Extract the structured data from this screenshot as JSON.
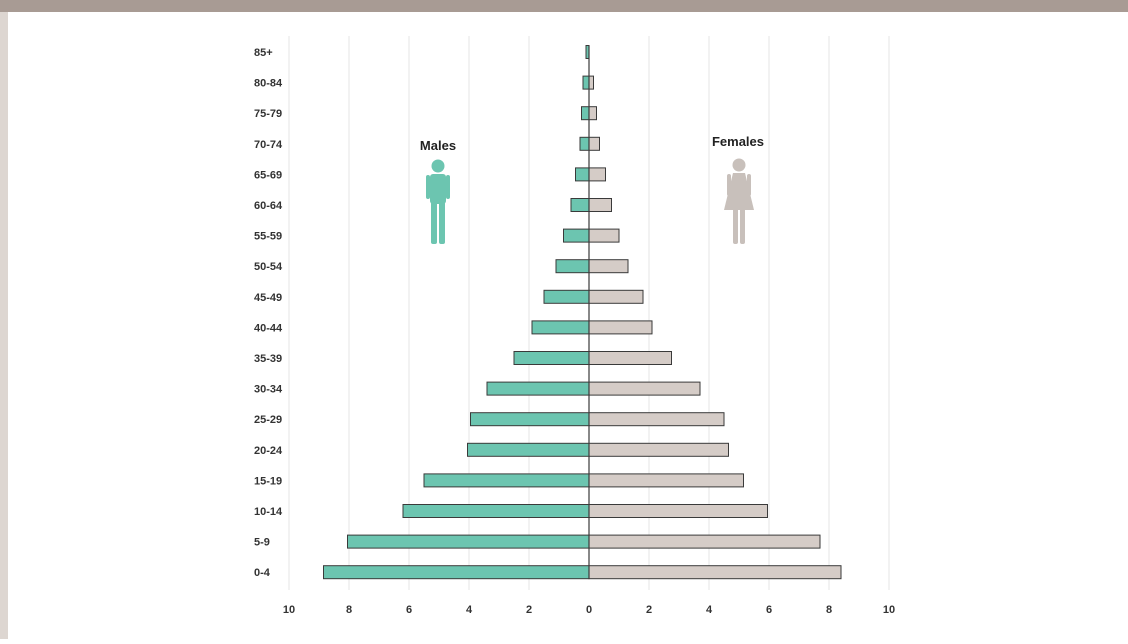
{
  "colors": {
    "male_bar": "#6cc5b0",
    "female_bar": "#d5ccc7",
    "bar_stroke": "#3a3a3a",
    "male_icon": "#6cc5b0",
    "female_icon": "#c8c0bb",
    "grid": "#e6e6e6",
    "top_band": "#a89b94",
    "left_border": "#ddd6d1"
  },
  "icons": {
    "male": "male-person-icon",
    "female": "female-person-icon"
  },
  "chart_data": {
    "type": "bar",
    "orientation": "horizontal",
    "layout": "population-pyramid",
    "title": "",
    "xlabel": "",
    "ylabel": "",
    "categories": [
      "85+",
      "80-84",
      "75-79",
      "70-74",
      "65-69",
      "60-64",
      "55-59",
      "50-54",
      "45-49",
      "40-44",
      "35-39",
      "30-34",
      "25-29",
      "20-24",
      "15-19",
      "10-14",
      "5-9",
      "0-4"
    ],
    "series": [
      {
        "name": "Males",
        "values": [
          0.1,
          0.2,
          0.25,
          0.3,
          0.45,
          0.6,
          0.85,
          1.1,
          1.5,
          1.9,
          2.5,
          3.4,
          3.95,
          4.05,
          5.5,
          6.2,
          8.05,
          8.85
        ]
      },
      {
        "name": "Females",
        "values": [
          0.0,
          0.15,
          0.25,
          0.35,
          0.55,
          0.75,
          1.0,
          1.3,
          1.8,
          2.1,
          2.75,
          3.7,
          4.5,
          4.65,
          5.15,
          5.95,
          7.7,
          8.4
        ]
      }
    ],
    "xlim": [
      -10,
      10
    ],
    "x_tick_values": [
      -10,
      -8,
      -6,
      -4,
      -2,
      0,
      2,
      4,
      6,
      8,
      10
    ],
    "x_tick_labels": [
      "10",
      "8",
      "6",
      "4",
      "2",
      "0",
      "2",
      "4",
      "6",
      "8",
      "10"
    ],
    "grid": true,
    "legend": "none"
  }
}
